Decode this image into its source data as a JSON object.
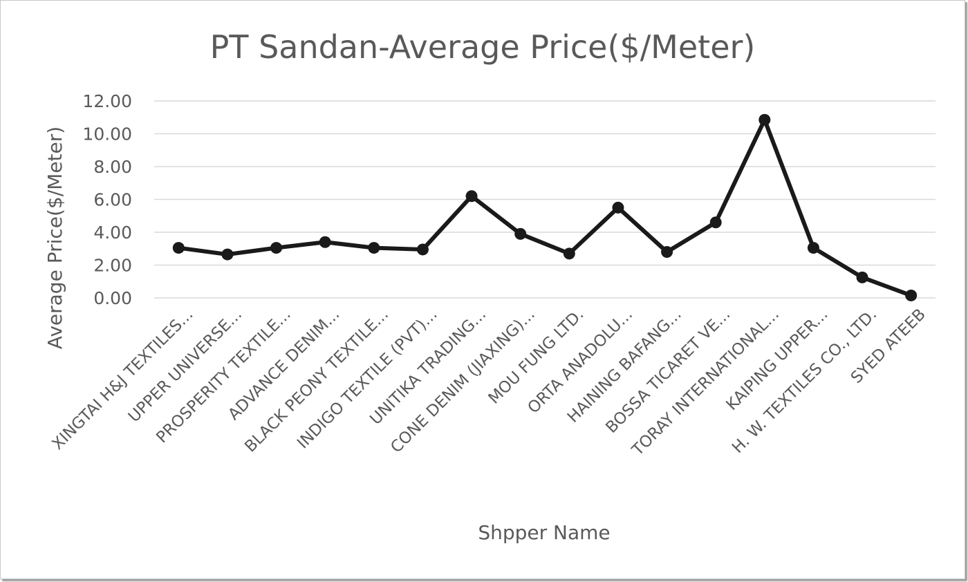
{
  "chart_data": {
    "type": "line",
    "title": "PT Sandan-Average Price($/Meter)",
    "xlabel": "Shpper Name",
    "ylabel": "Average Price($/Meter)",
    "ylim": [
      0,
      12
    ],
    "yticks": [
      "0.00",
      "2.00",
      "4.00",
      "6.00",
      "8.00",
      "10.00",
      "12.00"
    ],
    "grid": true,
    "categories": [
      "XINGTAI H&J TEXTILES...",
      "UPPER UNIVERSE...",
      "PROSPERITY TEXTILE...",
      "ADVANCE DENIM...",
      "BLACK PEONY TEXTILE...",
      "INDIGO TEXTILE (PVT)...",
      "UNITIKA TRADING...",
      "CONE DENIM (JIAXING)...",
      "MOU FUNG LTD.",
      "ORTA ANADOLU...",
      "HAINING BAFANG...",
      "BOSSA TICARET VE...",
      "TORAY INTERNATIONAL...",
      "KAIPING UPPER...",
      "H. W. TEXTILES CO., LTD.",
      "SYED ATEEB"
    ],
    "values": [
      3.05,
      2.65,
      3.05,
      3.4,
      3.05,
      2.95,
      6.2,
      3.9,
      2.7,
      5.5,
      2.8,
      4.6,
      10.85,
      3.05,
      1.25,
      0.15
    ]
  }
}
